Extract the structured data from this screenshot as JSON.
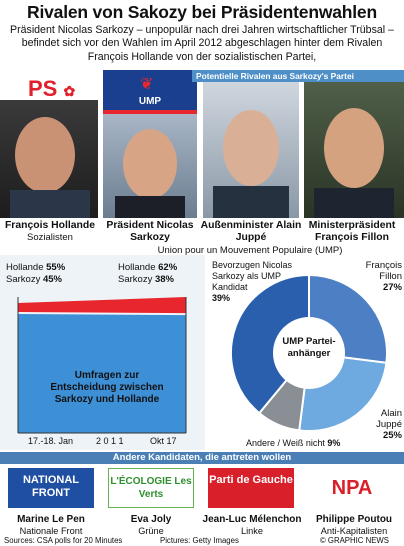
{
  "title": "Rivalen von Sakozy bei Präsidentenwahlen",
  "intro": "Präsident Nicolas Sarkozy – unpopulär nach drei Jahren wirtschaftlicher Trübsal – befindet sich vor den Wahlen im April 2012 abgeschlagen hinter dem Rivalen François Hollande von der sozialistischen Partei,",
  "banner": "Potentielle Rivalen aus Sarkozy's Partei",
  "logos": {
    "ps": "PS",
    "ump": "UMP"
  },
  "people": [
    {
      "name": "François Hollande",
      "role": "Sozialisten"
    },
    {
      "name": "Präsident Nicolas Sarkozy",
      "role": "Union pour un Mouvement Populaire (UMP)"
    },
    {
      "name": "Außenminister Alain Juppé",
      "role": ""
    },
    {
      "name": "Ministerpräsident François Fillon",
      "role": ""
    }
  ],
  "poll": {
    "left": {
      "hollande_label": "Hollande",
      "hollande_value": "55%",
      "sarkozy_label": "Sarkozy",
      "sarkozy_value": "45%"
    },
    "right": {
      "hollande_label": "Hollande",
      "hollande_value": "62%",
      "sarkozy_label": "Sarkozy",
      "sarkozy_value": "38%"
    },
    "caption": "Umfragen zur Entscheidung zwischen Sarkozy und Hollande",
    "x_start": "17.-18. Jan",
    "x_mid": "2 0 1 1",
    "x_end": "Okt 17",
    "colors": {
      "hollande": "#e8262d",
      "sarkozy": "#3d8fd6"
    }
  },
  "chart_data": [
    {
      "type": "area",
      "title": "Umfragen zur Entscheidung zwischen Sarkozy und Hollande",
      "categories": [
        "17.-18. Jan",
        "Okt 17"
      ],
      "series": [
        {
          "name": "Hollande",
          "values": [
            55,
            62
          ]
        },
        {
          "name": "Sarkozy",
          "values": [
            45,
            38
          ]
        }
      ]
    },
    {
      "type": "pie",
      "center_label": "UMP Partei-anhänger",
      "slices": [
        {
          "label": "Bevorzugen Nicolas Sarkozy als UMP Kandidat",
          "value": 39,
          "color": "#2a5fae"
        },
        {
          "label": "François Fillon",
          "value": 27,
          "color": "#4c7fc4"
        },
        {
          "label": "Alain Juppé",
          "value": 25,
          "color": "#6ea9e0"
        },
        {
          "label": "Andere / Weiß nicht",
          "value": 9,
          "color": "#8a8f95"
        }
      ]
    }
  ],
  "pie_labels": {
    "sarkozy": "Bevorzugen Nicolas Sarkozy als UMP Kandidat",
    "sarkozy_value": "39%",
    "fillon": "François Fillon",
    "fillon_value": "27%",
    "juppe": "Alain Juppé",
    "juppe_value": "25%",
    "andere": "Andere / Weiß nicht",
    "andere_value": "9%",
    "center": "UMP Partei-anhänger"
  },
  "section2": "Andere Kandidaten, die antreten wollen",
  "candidates": [
    {
      "logo": "NATIONAL FRONT",
      "name": "Marine Le Pen",
      "party": "Nationale Front"
    },
    {
      "logo": "L'ÉCOLOGIE Les Verts",
      "name": "Eva Joly",
      "party": "Grüne"
    },
    {
      "logo": "Parti de Gauche",
      "name": "Jean-Luc Mélenchon",
      "party": "Linke"
    },
    {
      "logo": "NPA",
      "name": "Philippe Poutou",
      "party": "Anti-Kapitalisten"
    }
  ],
  "footer": {
    "source": "Sources: CSA polls for 20 Minutes",
    "pictures": "Pictures: Getty Images",
    "credit": "© GRAPHIC NEWS"
  }
}
